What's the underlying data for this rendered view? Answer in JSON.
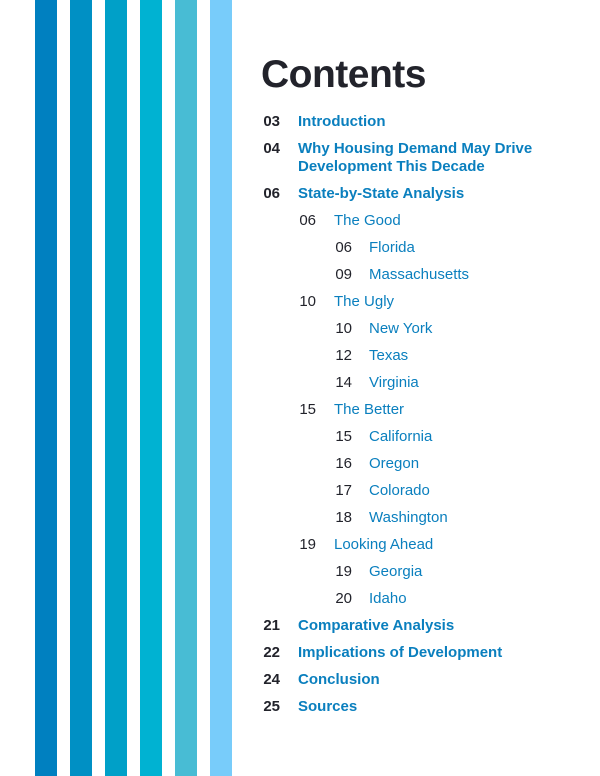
{
  "stripes": [
    "#0080c0",
    "#0090c4",
    "#00a0c8",
    "#00b2d2",
    "#48bcd4",
    "#78ccfa"
  ],
  "title": "Contents",
  "colors": {
    "heading": "#22232b",
    "link": "#0a7fbe"
  },
  "items": [
    {
      "level": 1,
      "page": "03",
      "title": "Introduction"
    },
    {
      "level": 1,
      "page": "04",
      "title": "Why Housing Demand May Drive Development This Decade"
    },
    {
      "level": 1,
      "page": "06",
      "title": "State-by-State Analysis"
    },
    {
      "level": 2,
      "page": "06",
      "title": "The Good"
    },
    {
      "level": 3,
      "page": "06",
      "title": "Florida"
    },
    {
      "level": 3,
      "page": "09",
      "title": "Massachusetts"
    },
    {
      "level": 2,
      "page": "10",
      "title": "The Ugly"
    },
    {
      "level": 3,
      "page": "10",
      "title": "New York"
    },
    {
      "level": 3,
      "page": "12",
      "title": "Texas"
    },
    {
      "level": 3,
      "page": "14",
      "title": "Virginia"
    },
    {
      "level": 2,
      "page": "15",
      "title": "The Better"
    },
    {
      "level": 3,
      "page": "15",
      "title": "California"
    },
    {
      "level": 3,
      "page": "16",
      "title": "Oregon"
    },
    {
      "level": 3,
      "page": "17",
      "title": "Colorado"
    },
    {
      "level": 3,
      "page": "18",
      "title": "Washington"
    },
    {
      "level": 2,
      "page": "19",
      "title": "Looking Ahead"
    },
    {
      "level": 3,
      "page": "19",
      "title": "Georgia"
    },
    {
      "level": 3,
      "page": "20",
      "title": "Idaho"
    },
    {
      "level": 1,
      "page": "21",
      "title": "Comparative Analysis"
    },
    {
      "level": 1,
      "page": "22",
      "title": "Implications of Development"
    },
    {
      "level": 1,
      "page": "24",
      "title": "Conclusion"
    },
    {
      "level": 1,
      "page": "25",
      "title": "Sources"
    }
  ]
}
